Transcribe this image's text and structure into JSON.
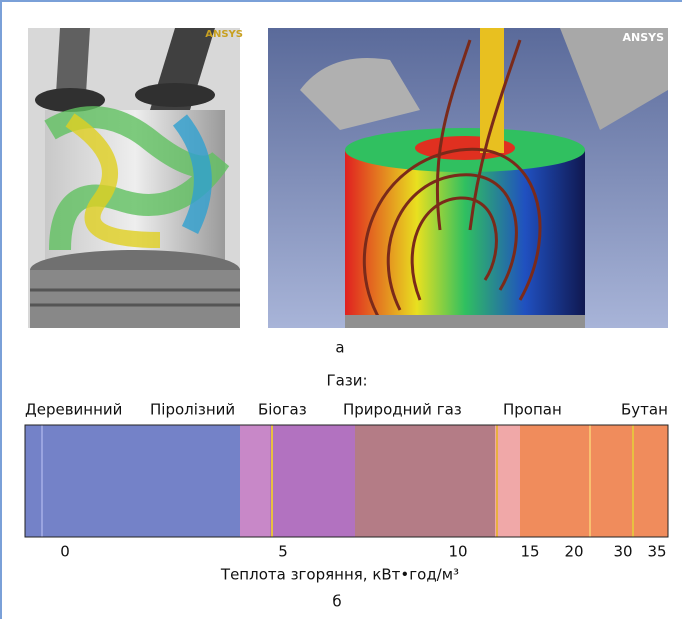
{
  "panel_a": {
    "images": [
      {
        "logo": "ANSYS"
      },
      {
        "logo": "ANSYS"
      }
    ],
    "label": "а"
  },
  "panel_b": {
    "title": "Гази:",
    "gases": [
      "Деревинний",
      "Піролізний",
      "Біогаз",
      "Природний газ",
      "Пропан",
      "Бутан"
    ],
    "ticks": [
      0,
      5,
      10,
      15,
      20,
      30,
      35
    ],
    "axis_label": "Теплота згоряння, кВт•год/м³",
    "label": "б"
  }
}
